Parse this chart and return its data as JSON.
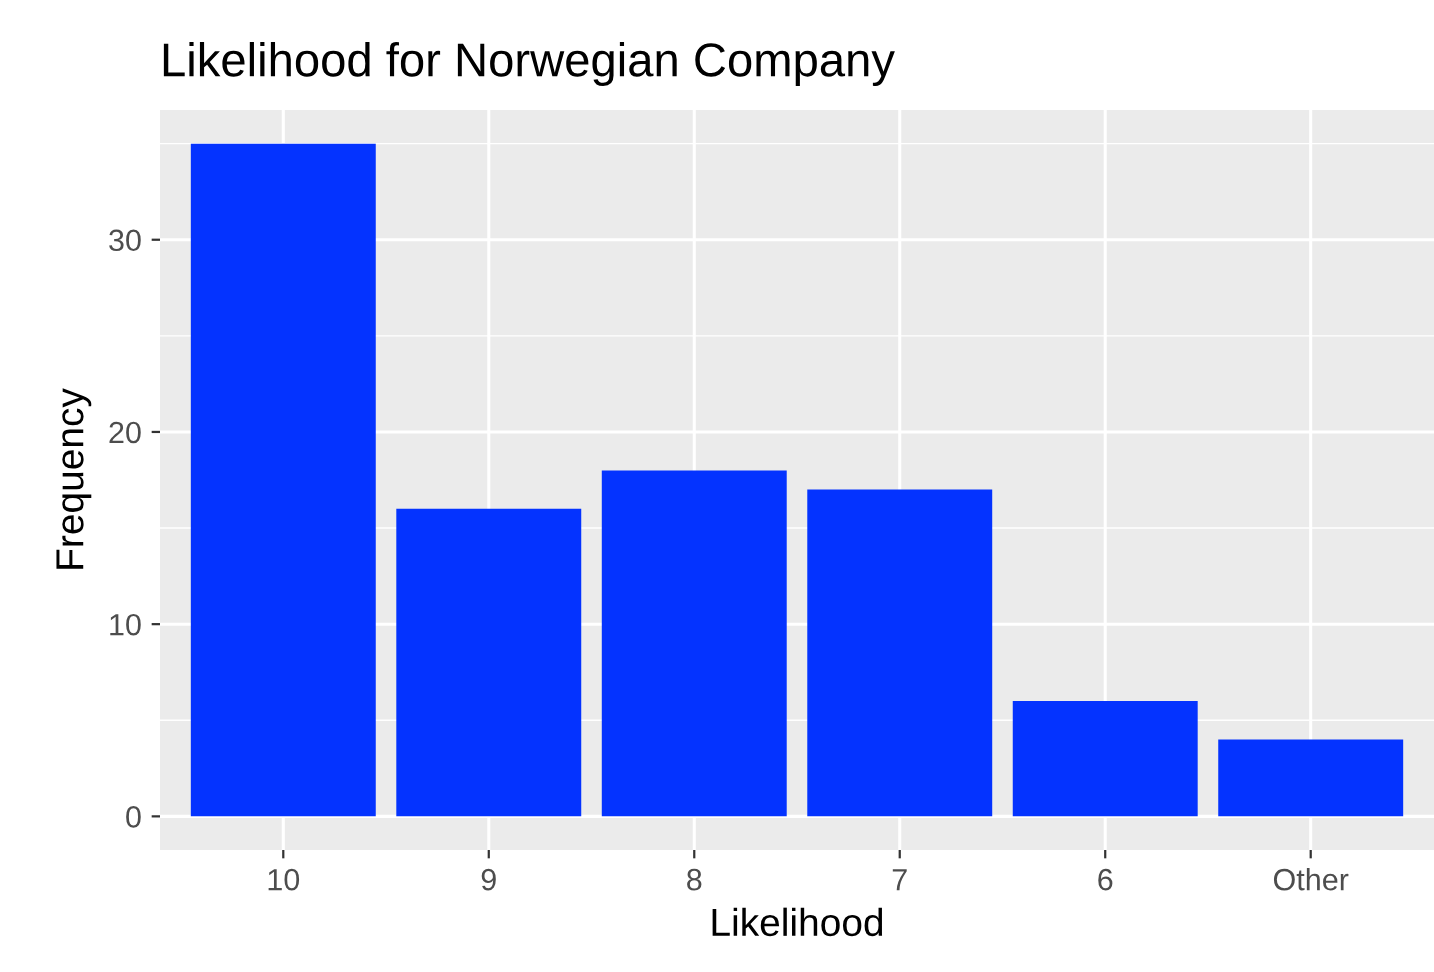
{
  "chart_data": {
    "type": "bar",
    "title": "Likelihood for Norwegian Company",
    "xlabel": "Likelihood",
    "ylabel": "Frequency",
    "categories": [
      "10",
      "9",
      "8",
      "7",
      "6",
      "Other"
    ],
    "values": [
      35,
      16,
      18,
      17,
      6,
      4
    ],
    "color": "#0433ff",
    "ylim": [
      -1.75,
      36.75
    ],
    "yticks": [
      0,
      10,
      20,
      30
    ],
    "grid": true,
    "legend": false
  }
}
